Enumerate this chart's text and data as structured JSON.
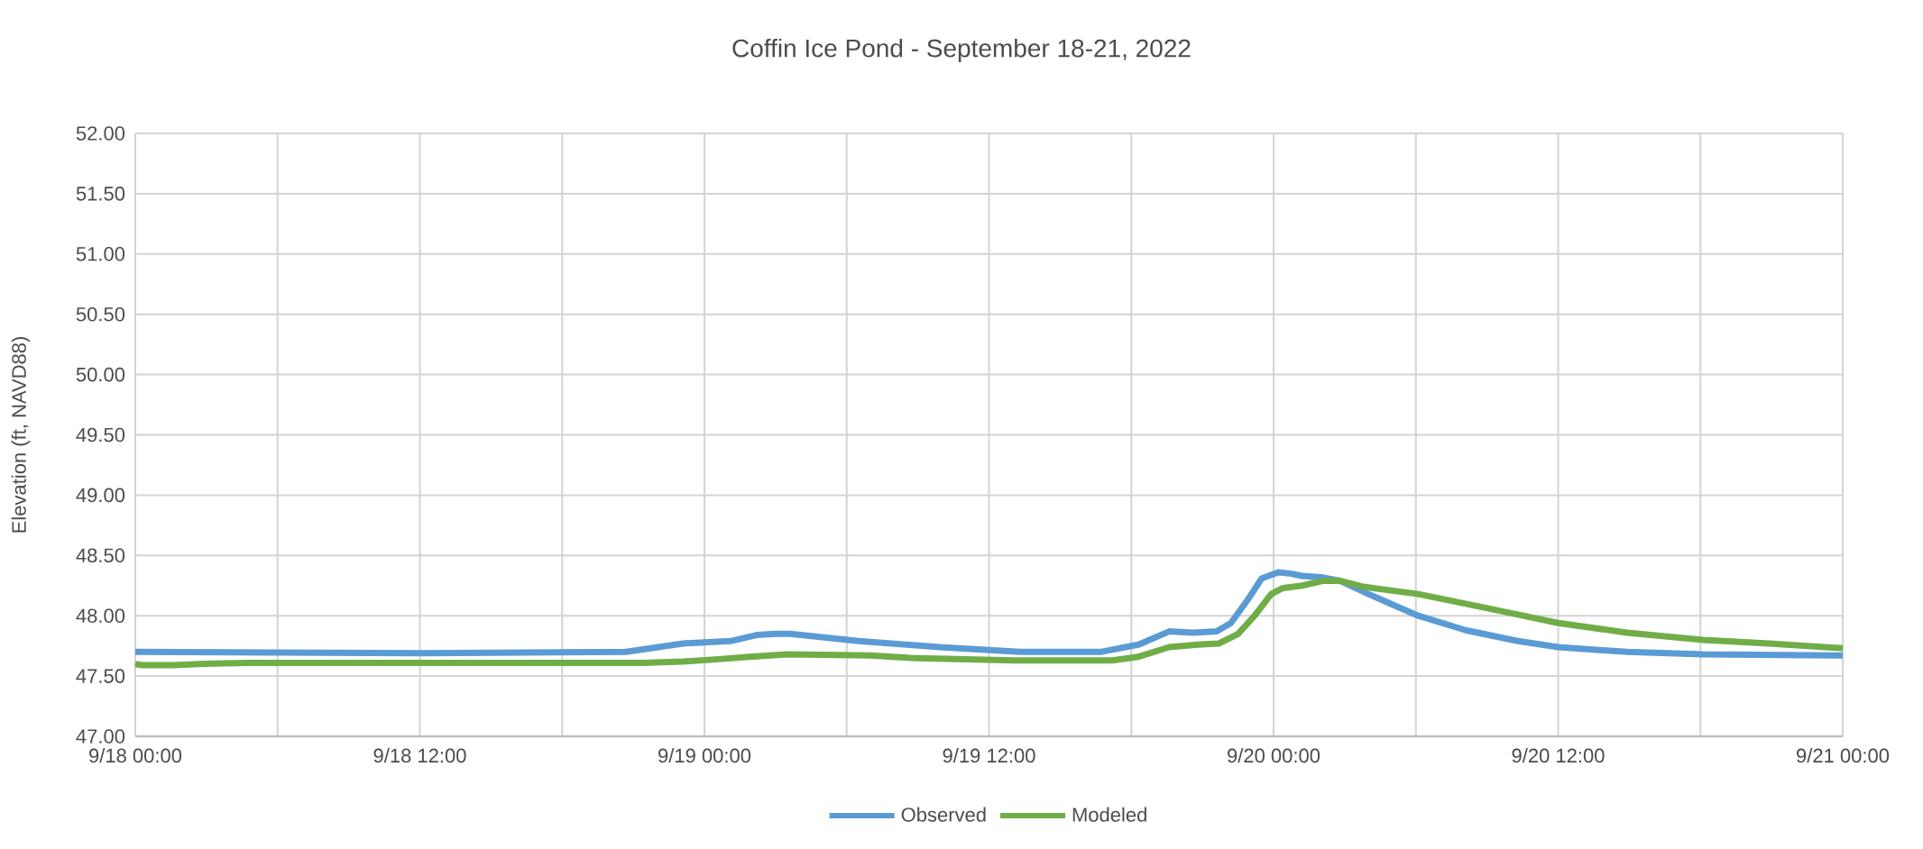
{
  "chart_data": {
    "type": "line",
    "title": "Coffin Ice Pond - September 18-21, 2022",
    "ylabel": "Elevation (ft, NAVD88)",
    "xlim": [
      "2022-09-18T00:00",
      "2022-09-21T00:00"
    ],
    "ylim": [
      47,
      52
    ],
    "xticks": [
      {
        "value": "2022-09-18T00:00",
        "label": "9/18 00:00"
      },
      {
        "value": "2022-09-18T06:00",
        "label": null
      },
      {
        "value": "2022-09-18T12:00",
        "label": "9/18 12:00"
      },
      {
        "value": "2022-09-18T18:00",
        "label": null
      },
      {
        "value": "2022-09-19T00:00",
        "label": "9/19 00:00"
      },
      {
        "value": "2022-09-19T06:00",
        "label": null
      },
      {
        "value": "2022-09-19T12:00",
        "label": "9/19 12:00"
      },
      {
        "value": "2022-09-19T18:00",
        "label": null
      },
      {
        "value": "2022-09-20T00:00",
        "label": "9/20 00:00"
      },
      {
        "value": "2022-09-20T06:00",
        "label": null
      },
      {
        "value": "2022-09-20T12:00",
        "label": "9/20 12:00"
      },
      {
        "value": "2022-09-20T18:00",
        "label": null
      },
      {
        "value": "2022-09-21T00:00",
        "label": "9/21 00:00"
      }
    ],
    "yticks": [
      {
        "value": 47,
        "label": "47.00"
      },
      {
        "value": 47.5,
        "label": "47.50"
      },
      {
        "value": 48,
        "label": "48.00"
      },
      {
        "value": 48.5,
        "label": "48.50"
      },
      {
        "value": 49,
        "label": "49.00"
      },
      {
        "value": 49.5,
        "label": "49.50"
      },
      {
        "value": 50,
        "label": "50.00"
      },
      {
        "value": 50.5,
        "label": "50.50"
      },
      {
        "value": 51,
        "label": "51.00"
      },
      {
        "value": 51.5,
        "label": "51.50"
      },
      {
        "value": 52,
        "label": "52.00"
      }
    ],
    "grid": true,
    "legend": "bottom",
    "marker": "none",
    "line_style": "solid",
    "series": [
      {
        "name": "Observed",
        "color": "#5b9bd5",
        "x": [
          "2022-09-18T00:00",
          "2022-09-18T12:00",
          "2022-09-18T20:42",
          "2022-09-18T23:06",
          "2022-09-19T00:00",
          "2022-09-19T01:06",
          "2022-09-19T02:12",
          "2022-09-19T03:00",
          "2022-09-19T03:36",
          "2022-09-19T06:30",
          "2022-09-19T09:54",
          "2022-09-19T13:18",
          "2022-09-19T16:42",
          "2022-09-19T18:18",
          "2022-09-19T19:36",
          "2022-09-19T20:36",
          "2022-09-19T21:36",
          "2022-09-19T22:12",
          "2022-09-19T22:54",
          "2022-09-19T23:30",
          "2022-09-20T00:12",
          "2022-09-20T00:42",
          "2022-09-20T01:12",
          "2022-09-20T02:00",
          "2022-09-20T02:48",
          "2022-09-20T04:00",
          "2022-09-20T06:06",
          "2022-09-20T08:06",
          "2022-09-20T10:18",
          "2022-09-20T12:00",
          "2022-09-20T14:54",
          "2022-09-20T18:06",
          "2022-09-21T00:00"
        ],
        "values": [
          47.7,
          47.69,
          47.7,
          47.77,
          47.78,
          47.79,
          47.84,
          47.85,
          47.85,
          47.79,
          47.74,
          47.7,
          47.7,
          47.76,
          47.87,
          47.86,
          47.87,
          47.94,
          48.13,
          48.31,
          48.36,
          48.35,
          48.33,
          48.32,
          48.29,
          48.18,
          48.0,
          47.88,
          47.79,
          47.74,
          47.7,
          47.68,
          47.67
        ]
      },
      {
        "name": "Modeled",
        "color": "#70ad47",
        "x": [
          "2022-09-18T00:00",
          "2022-09-18T00:18",
          "2022-09-18T01:36",
          "2022-09-18T02:42",
          "2022-09-18T04:42",
          "2022-09-18T21:24",
          "2022-09-18T23:06",
          "2022-09-19T00:36",
          "2022-09-19T01:54",
          "2022-09-19T03:30",
          "2022-09-19T07:00",
          "2022-09-19T08:42",
          "2022-09-19T10:36",
          "2022-09-19T13:00",
          "2022-09-19T17:12",
          "2022-09-19T18:18",
          "2022-09-19T19:36",
          "2022-09-19T20:48",
          "2022-09-19T21:42",
          "2022-09-19T22:30",
          "2022-09-19T23:12",
          "2022-09-19T23:54",
          "2022-09-20T00:24",
          "2022-09-20T01:12",
          "2022-09-20T02:06",
          "2022-09-20T02:48",
          "2022-09-20T03:48",
          "2022-09-20T06:06",
          "2022-09-20T08:06",
          "2022-09-20T10:18",
          "2022-09-20T12:00",
          "2022-09-20T14:54",
          "2022-09-20T18:06",
          "2022-09-20T20:54",
          "2022-09-21T00:00"
        ],
        "values": [
          47.6,
          47.59,
          47.59,
          47.6,
          47.61,
          47.61,
          47.62,
          47.64,
          47.66,
          47.68,
          47.67,
          47.65,
          47.64,
          47.63,
          47.63,
          47.66,
          47.74,
          47.76,
          47.77,
          47.85,
          48.0,
          48.18,
          48.23,
          48.25,
          48.29,
          48.29,
          48.24,
          48.18,
          48.1,
          48.01,
          47.94,
          47.86,
          47.8,
          47.77,
          47.73
        ]
      }
    ]
  }
}
